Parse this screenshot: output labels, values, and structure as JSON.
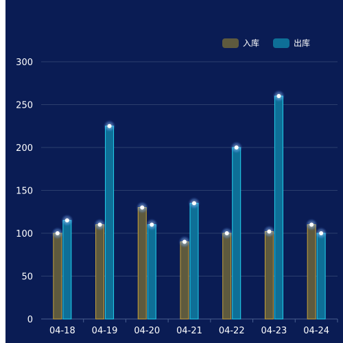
{
  "chart_data": {
    "type": "bar",
    "categories": [
      "04-18",
      "04-19",
      "04-20",
      "04-21",
      "04-22",
      "04-23",
      "04-24"
    ],
    "series": [
      {
        "name": "入库",
        "values": [
          100,
          110,
          130,
          90,
          100,
          102,
          110
        ]
      },
      {
        "name": "出库",
        "values": [
          115,
          225,
          110,
          135,
          200,
          260,
          100
        ]
      }
    ],
    "ylim": [
      0,
      300
    ],
    "yticks": [
      "0",
      "50",
      "100",
      "150",
      "200",
      "250",
      "300"
    ],
    "grid": true,
    "legend_position": "top-right"
  },
  "colors": {
    "background": "#0a1c54",
    "series_in_fill": "#5e5a3e",
    "series_in_border": "#c9a43a",
    "series_out_fill": "#0e6f97",
    "series_out_border": "#22d2ef",
    "grid": "#2c3f6e",
    "text": "#ffffff",
    "marker": "#ffffff"
  }
}
